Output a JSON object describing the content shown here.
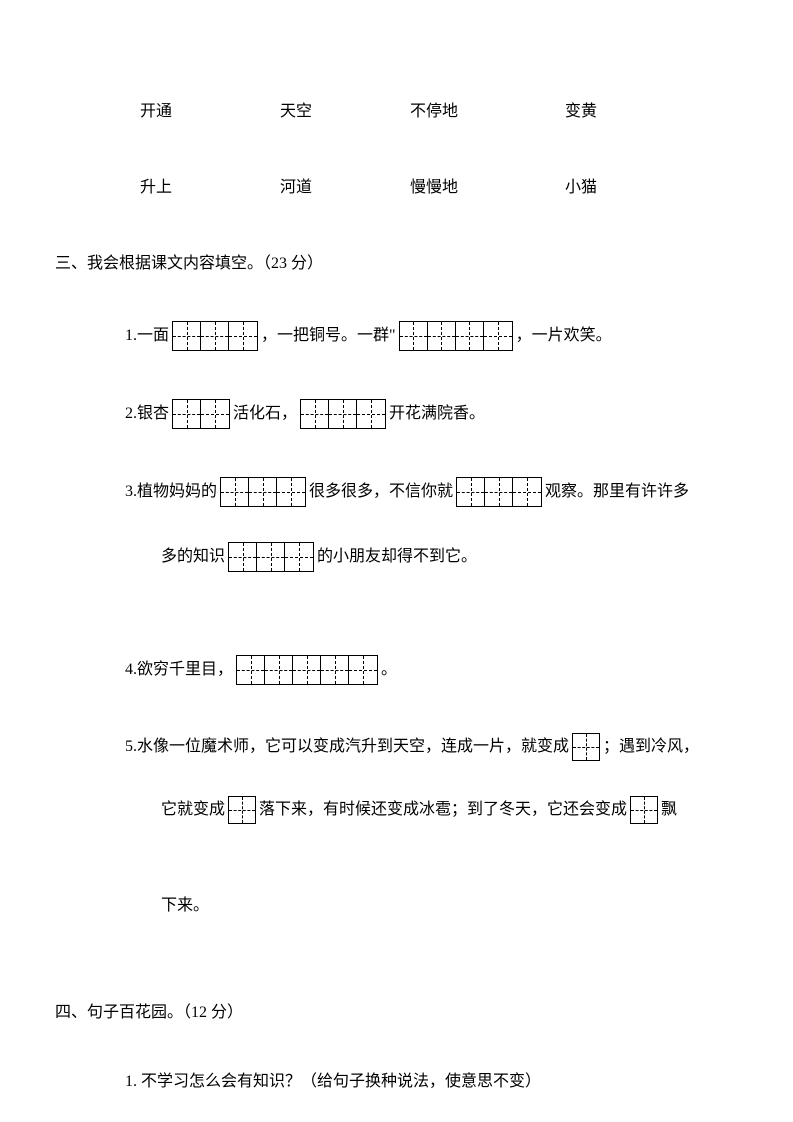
{
  "wordRows": [
    [
      "开通",
      "天空",
      "不停地",
      "变黄"
    ],
    [
      "升上",
      "河道",
      "慢慢地",
      "小猫"
    ]
  ],
  "section3": {
    "title": "三、我会根据课文内容填空。（23 分）",
    "q1": {
      "num": "1.",
      "t1": "一面",
      "t2": "，一把铜号。一群\"",
      "t3": "，一片欢笑。",
      "boxes1": 3,
      "boxes2": 4
    },
    "q2": {
      "num": "2.",
      "t1": "银杏",
      "t2": "活化石，",
      "t3": "开花满院香。",
      "boxes1": 2,
      "boxes2": 3
    },
    "q3": {
      "num": "3.",
      "t1": "植物妈妈的",
      "t2": "很多很多，不信你就",
      "t3": "观察。那里有许许多",
      "boxes1": 3,
      "boxes2": 3,
      "line2_t1": "多的知识",
      "line2_t2": "的小朋友却得不到它。",
      "line2_boxes": 3
    },
    "q4": {
      "num": "4.",
      "t1": "欲穷千里目，",
      "t2": "。",
      "boxes": 5
    },
    "q5": {
      "num": "5.",
      "t1": "水像一位魔术师，它可以变成汽升到天空，连成一片，就变成",
      "t2": "；遇到冷风，",
      "boxes1": 1,
      "line2_t1": "它就变成",
      "line2_t2": "落下来，有时候还变成冰雹；到了冬天，它还会变成",
      "line2_t3": "飘",
      "line2_boxes1": 1,
      "line2_boxes2": 1,
      "line3_t1": "下来。"
    }
  },
  "section4": {
    "title": "四、句子百花园。（12 分）",
    "q1": "1. 不学习怎么会有知识？（给句子换种说法，使意思不变）"
  }
}
